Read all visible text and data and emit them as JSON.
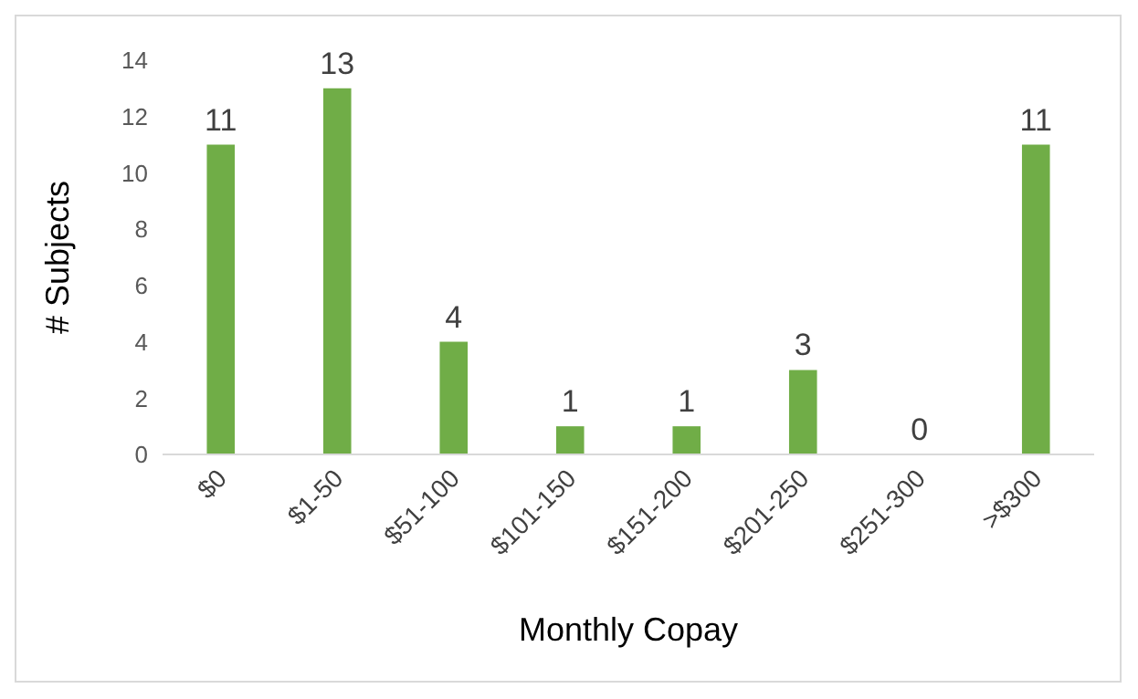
{
  "chart_data": {
    "type": "bar",
    "xlabel": "Monthly Copay",
    "ylabel": "# Subjects",
    "categories": [
      "$0",
      "$1-50",
      "$51-100",
      "$101-150",
      "$151-200",
      "$201-250",
      "$251-300",
      ">$300"
    ],
    "values": [
      11,
      13,
      4,
      1,
      1,
      3,
      0,
      11
    ],
    "color": "#70ad47",
    "ylim": [
      0,
      14
    ],
    "yticks": [
      0,
      2,
      4,
      6,
      8,
      10,
      12,
      14
    ],
    "grid": false,
    "data_labels": true
  }
}
